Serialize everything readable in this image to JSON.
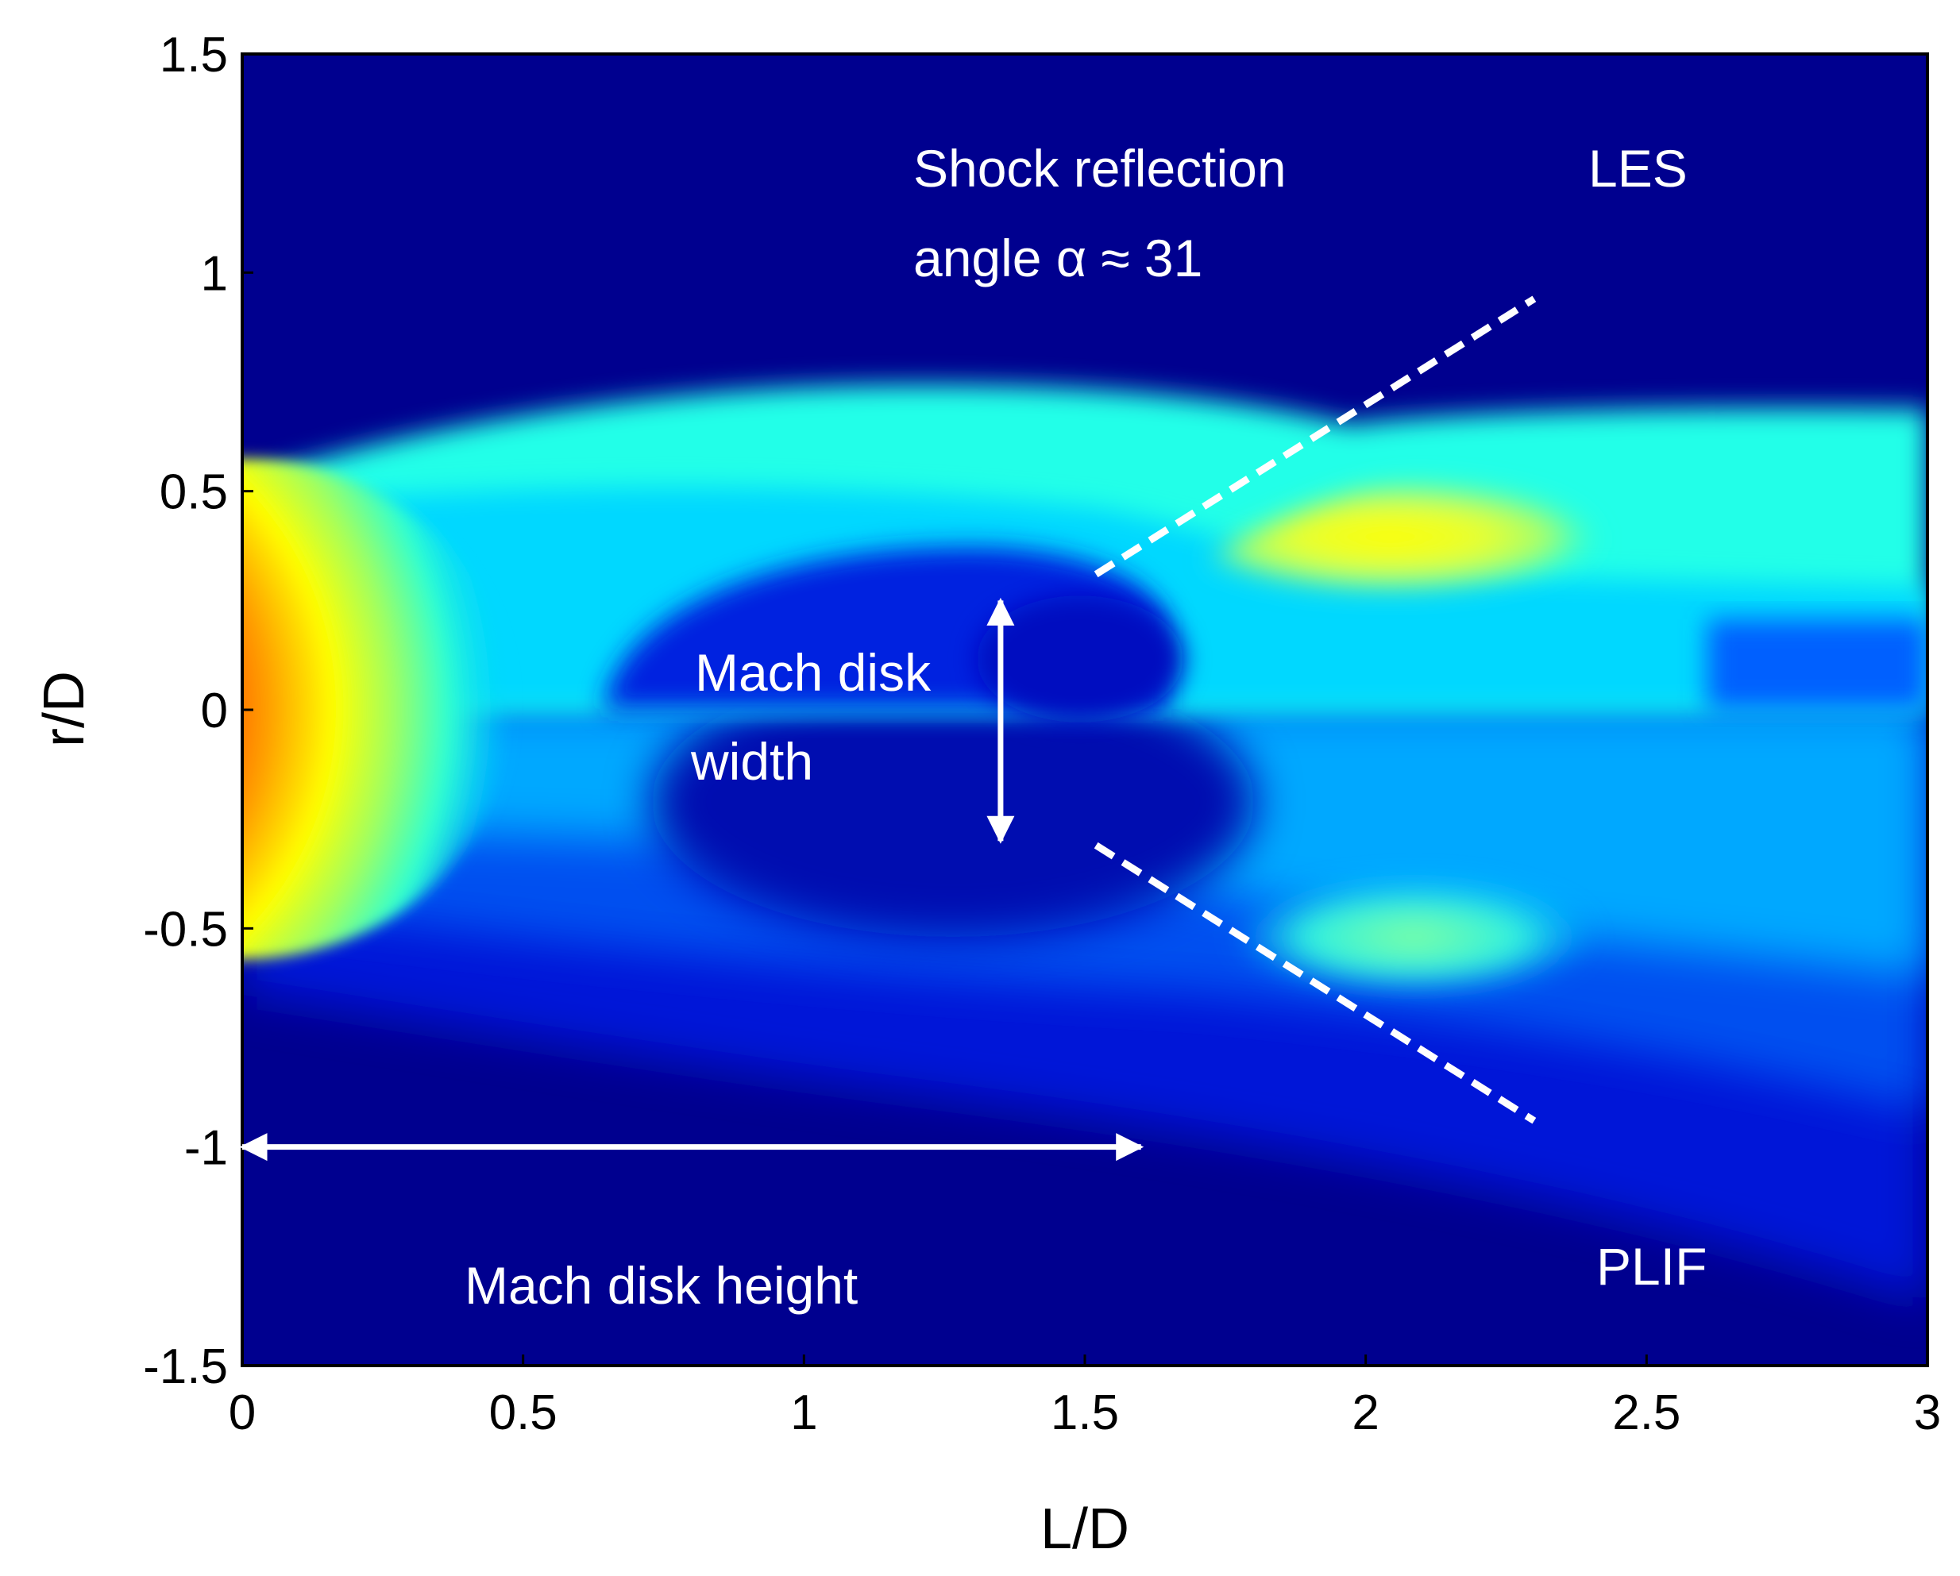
{
  "chart_data": {
    "type": "heatmap",
    "title": "",
    "xlabel": "L/D",
    "ylabel": "r/D",
    "xlim": [
      0,
      3
    ],
    "ylim": [
      -1.5,
      1.5
    ],
    "x_ticks": [
      0,
      0.5,
      1,
      1.5,
      2,
      2.5,
      3
    ],
    "x_tick_labels": [
      "0",
      "0.5",
      "1",
      "1.5",
      "2",
      "2.5",
      "3"
    ],
    "y_ticks": [
      1.5,
      1,
      0.5,
      0,
      -0.5,
      -1,
      -1.5
    ],
    "y_tick_labels": [
      "1.5",
      "1",
      "0.5",
      "0",
      "-0.5",
      "-1",
      "-1.5"
    ],
    "colormap": "jet",
    "grid": false,
    "panels": [
      {
        "name": "LES",
        "label": "LES",
        "region": "upper half (r/D > 0)"
      },
      {
        "name": "PLIF",
        "label": "PLIF",
        "region": "lower half (r/D < 0)"
      }
    ],
    "annotations": [
      {
        "name": "shock-reflection",
        "lines": [
          "Shock reflection",
          "angle α ≈ 31"
        ],
        "x": 1.18,
        "y": 1.18
      },
      {
        "name": "mach-disk-width",
        "lines": [
          "Mach disk",
          "width"
        ],
        "x": 0.8,
        "y": -0.05
      },
      {
        "name": "mach-disk-height",
        "text": "Mach disk height",
        "x": 0.4,
        "y": -1.33
      }
    ],
    "arrows": [
      {
        "name": "mach-disk-height-arrow",
        "from": [
          0,
          -1.0
        ],
        "to": [
          1.6,
          -1.0
        ],
        "bidirectional": true
      },
      {
        "name": "mach-disk-width-arrow",
        "from": [
          1.35,
          0.25
        ],
        "to": [
          1.35,
          -0.3
        ],
        "bidirectional": true
      }
    ],
    "dashed_lines": [
      {
        "name": "shock-line-upper",
        "from": [
          1.52,
          0.31
        ],
        "to": [
          2.3,
          0.94
        ]
      },
      {
        "name": "shock-line-lower",
        "from": [
          1.52,
          -0.31
        ],
        "to": [
          2.3,
          -0.94
        ]
      }
    ]
  },
  "colors": {
    "background": "#00008f",
    "annotation": "#ffffff",
    "axis": "#000000"
  }
}
